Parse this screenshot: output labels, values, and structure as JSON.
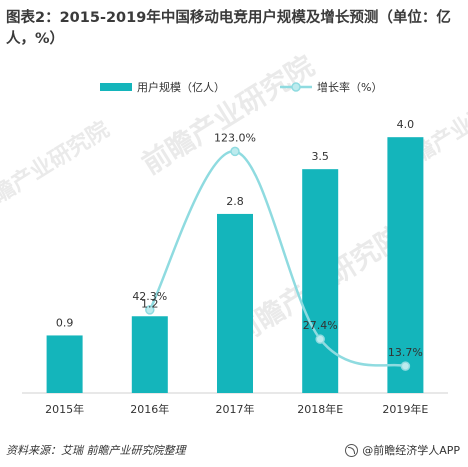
{
  "title": "图表2：2015-2019年中国移动电竞用户规模及增长预测（单位：亿人，%）",
  "footer": {
    "source": "资料来源：艾瑞 前瞻产业研究院整理",
    "brand": "@前瞻经济学人APP"
  },
  "watermark": "前瞻产业研究院",
  "colors": {
    "bar": "#14b5bb",
    "line": "#8fdbe0",
    "marker": "#bdebee",
    "text": "#333333"
  },
  "chart_data": {
    "type": "bar",
    "categories": [
      "2015年",
      "2016年",
      "2017年",
      "2018年E",
      "2019年E"
    ],
    "series": [
      {
        "name": "用户规模（亿人）",
        "type": "bar",
        "axis": "left",
        "values": [
          0.9,
          1.2,
          2.8,
          3.5,
          4.0
        ],
        "labels": [
          "0.9",
          "1.2",
          "2.8",
          "3.5",
          "4.0"
        ]
      },
      {
        "name": "增长率（%）",
        "type": "line",
        "smooth": true,
        "axis": "right",
        "values": [
          null,
          42.3,
          123.0,
          27.4,
          13.7
        ],
        "labels": [
          "",
          "42.3%",
          "123.0%",
          "27.4%",
          "13.7%"
        ]
      }
    ],
    "ylim_left": [
      0,
      4.3
    ],
    "ylim_right": [
      0,
      140
    ],
    "grid": false,
    "legend": "top"
  }
}
